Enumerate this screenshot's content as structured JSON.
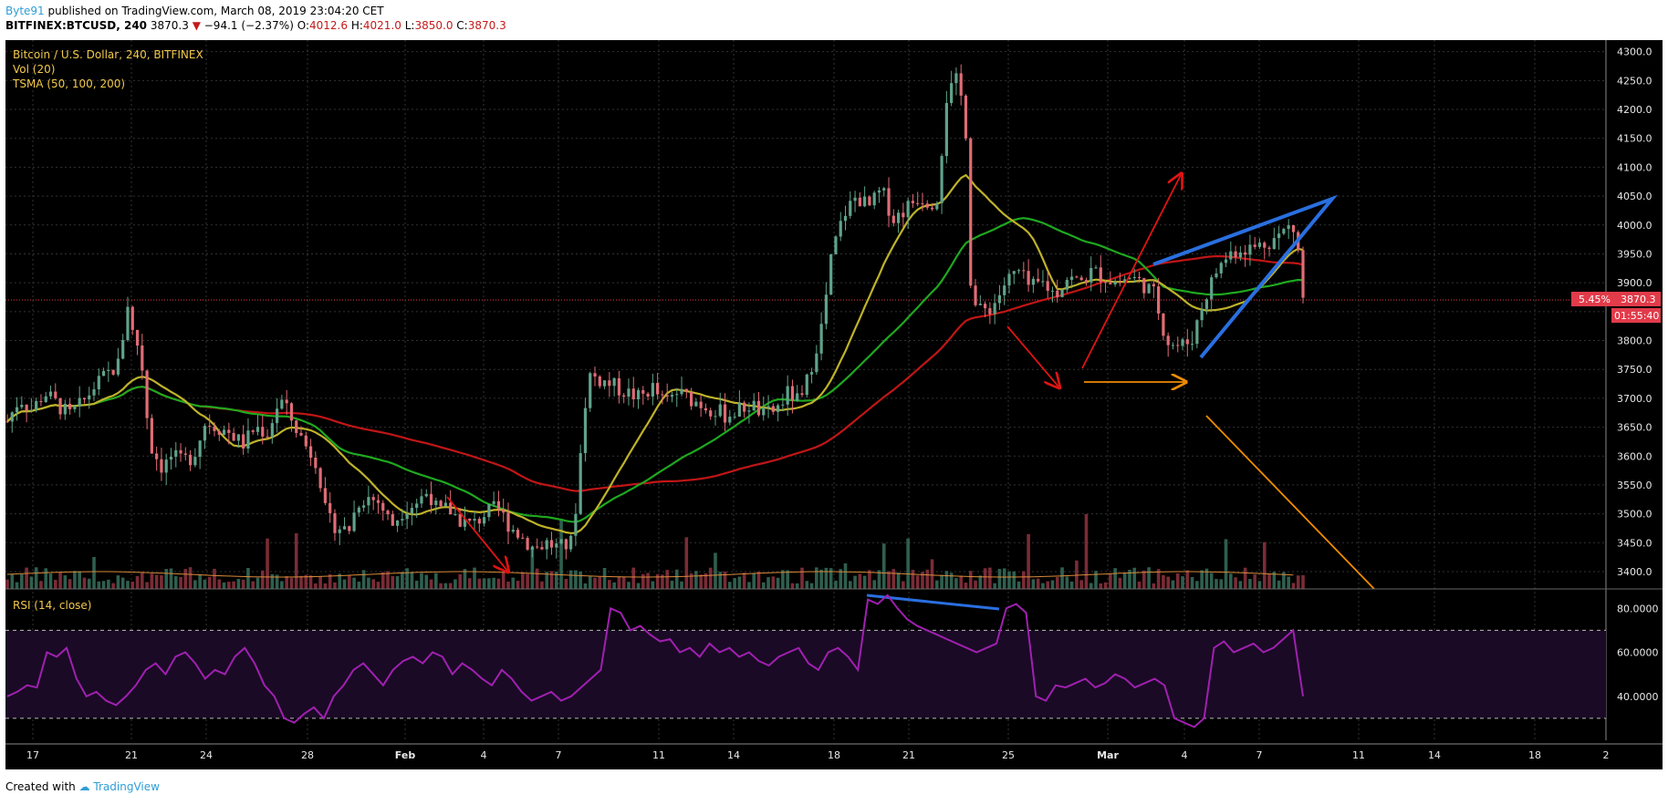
{
  "header": {
    "author": "Byte91",
    "published": " published on TradingView.com, March 08, 2019 23:04:20 CET",
    "symbol": "BITFINEX:BTCUSD, 240",
    "last": "3870.3",
    "change_arrow": "▼",
    "change": "−94.1 (−2.37%)",
    "o_label": "O:",
    "o_value": "4012.6",
    "h_label": "H:",
    "h_value": "4021.0",
    "l_label": "L:",
    "l_value": "3850.0",
    "c_label": "C:",
    "c_value": "3870.3"
  },
  "legend": {
    "title": "Bitcoin / U.S. Dollar, 240, BITFINEX",
    "vol": "Vol (20)",
    "tsma": "TSMA (50, 100, 200)",
    "rsi": "RSI (14, close)"
  },
  "price_badge": {
    "pct": "5.45%",
    "price": "3870.3",
    "countdown": "01:55:40"
  },
  "footer": {
    "created": "Created with",
    "brand": "TradingView"
  },
  "colors": {
    "bg": "#000000",
    "grid": "#333333",
    "up": "#5fa38a",
    "down": "#e06c75",
    "sma50": "#bfb22a",
    "sma100": "#1fa81f",
    "sma200": "#c01616",
    "rsi": "#a020b0",
    "blue": "#2a6fe0",
    "red_arrow": "#e01414",
    "orange": "#f08c00"
  },
  "chart_data": [
    {
      "type": "candlestick",
      "title": "Bitcoin / U.S. Dollar, 240, BITFINEX",
      "x_ticks": [
        "17",
        "21",
        "24",
        "28",
        "Feb",
        "4",
        "7",
        "11",
        "14",
        "18",
        "21",
        "25",
        "Mar",
        "4",
        "7",
        "11",
        "14",
        "18",
        "2"
      ],
      "y_ticks": [
        "4300.0",
        "4250.0",
        "4200.0",
        "4150.0",
        "4100.0",
        "4050.0",
        "4000.0",
        "3950.0",
        "3900.0",
        "3850.0",
        "3800.0",
        "3750.0",
        "3700.0",
        "3650.0",
        "3600.0",
        "3550.0",
        "3500.0",
        "3450.0",
        "3400.0"
      ],
      "ylim": [
        3370,
        4320
      ],
      "last_price": 3870.3,
      "price_path": [
        [
          0,
          3660
        ],
        [
          0.4,
          3700
        ],
        [
          0.8,
          3680
        ],
        [
          1.2,
          3710
        ],
        [
          1.6,
          3690
        ],
        [
          2,
          3670
        ],
        [
          2.4,
          3690
        ],
        [
          2.8,
          3720
        ],
        [
          3.2,
          3740
        ],
        [
          3.6,
          3760
        ],
        [
          3.9,
          3870
        ],
        [
          4.0,
          3820
        ],
        [
          4.3,
          3780
        ],
        [
          4.6,
          3620
        ],
        [
          5.0,
          3580
        ],
        [
          5.3,
          3600
        ],
        [
          5.6,
          3590
        ],
        [
          6.0,
          3600
        ],
        [
          6.4,
          3660
        ],
        [
          6.8,
          3650
        ],
        [
          7.2,
          3640
        ],
        [
          7.6,
          3620
        ],
        [
          8.0,
          3650
        ],
        [
          8.4,
          3640
        ],
        [
          8.8,
          3700
        ],
        [
          9.2,
          3660
        ],
        [
          9.6,
          3620
        ],
        [
          10.0,
          3590
        ],
        [
          10.3,
          3490
        ],
        [
          10.6,
          3480
        ],
        [
          11.0,
          3470
        ],
        [
          11.3,
          3520
        ],
        [
          11.6,
          3530
        ],
        [
          12.0,
          3520
        ],
        [
          12.4,
          3480
        ],
        [
          12.8,
          3510
        ],
        [
          13.2,
          3520
        ],
        [
          13.6,
          3540
        ],
        [
          13.9,
          3500
        ],
        [
          14.2,
          3510
        ],
        [
          14.6,
          3490
        ],
        [
          15.0,
          3480
        ],
        [
          15.4,
          3500
        ],
        [
          15.8,
          3510
        ],
        [
          16.2,
          3480
        ],
        [
          16.6,
          3460
        ],
        [
          17.0,
          3440
        ],
        [
          17.4,
          3450
        ],
        [
          17.8,
          3440
        ],
        [
          18.2,
          3450
        ],
        [
          18.4,
          3540
        ],
        [
          18.6,
          3680
        ],
        [
          18.8,
          3740
        ],
        [
          19.2,
          3730
        ],
        [
          19.6,
          3720
        ],
        [
          20.0,
          3710
        ],
        [
          20.4,
          3700
        ],
        [
          20.8,
          3720
        ],
        [
          21.2,
          3690
        ],
        [
          21.6,
          3710
        ],
        [
          22.0,
          3700
        ],
        [
          22.4,
          3690
        ],
        [
          22.8,
          3680
        ],
        [
          23.2,
          3670
        ],
        [
          23.6,
          3680
        ],
        [
          24.0,
          3690
        ],
        [
          24.4,
          3670
        ],
        [
          24.8,
          3680
        ],
        [
          25.2,
          3710
        ],
        [
          25.6,
          3690
        ],
        [
          26.0,
          3770
        ],
        [
          26.3,
          3830
        ],
        [
          26.6,
          3950
        ],
        [
          27.0,
          4020
        ],
        [
          27.4,
          4050
        ],
        [
          27.8,
          4030
        ],
        [
          28.2,
          4060
        ],
        [
          28.6,
          4010
        ],
        [
          29.0,
          4030
        ],
        [
          29.4,
          4050
        ],
        [
          29.8,
          4040
        ],
        [
          30.0,
          4050
        ],
        [
          30.3,
          4220
        ],
        [
          30.6,
          4250
        ],
        [
          30.9,
          4200
        ],
        [
          31.1,
          3870
        ],
        [
          31.4,
          3850
        ],
        [
          31.8,
          3860
        ],
        [
          32.2,
          3900
        ],
        [
          32.6,
          3920
        ],
        [
          33.0,
          3890
        ],
        [
          33.4,
          3900
        ],
        [
          33.8,
          3880
        ],
        [
          34.2,
          3910
        ],
        [
          34.6,
          3900
        ],
        [
          35.0,
          3920
        ],
        [
          35.4,
          3910
        ],
        [
          35.8,
          3900
        ],
        [
          36.2,
          3910
        ],
        [
          36.6,
          3900
        ],
        [
          37.0,
          3880
        ],
        [
          37.4,
          3800
        ],
        [
          37.8,
          3790
        ],
        [
          38.2,
          3800
        ],
        [
          38.6,
          3870
        ],
        [
          39.0,
          3920
        ],
        [
          39.4,
          3950
        ],
        [
          39.8,
          3960
        ],
        [
          40.2,
          3960
        ],
        [
          40.6,
          3970
        ],
        [
          41.0,
          3980
        ],
        [
          41.4,
          4000
        ],
        [
          41.6,
          3980
        ],
        [
          41.8,
          3870
        ]
      ],
      "volume_overlay": true
    },
    {
      "type": "line",
      "title": "RSI (14, close)",
      "y_ticks": [
        "80.0000",
        "60.0000",
        "40.0000"
      ],
      "ylim": [
        20,
        88
      ],
      "bands": [
        30,
        70
      ],
      "values": [
        40,
        42,
        45,
        44,
        60,
        58,
        62,
        48,
        40,
        42,
        38,
        36,
        40,
        45,
        52,
        55,
        50,
        58,
        60,
        55,
        48,
        52,
        50,
        58,
        62,
        55,
        45,
        40,
        30,
        28,
        32,
        35,
        30,
        40,
        45,
        52,
        55,
        50,
        45,
        52,
        56,
        58,
        55,
        60,
        58,
        50,
        55,
        52,
        48,
        45,
        52,
        48,
        42,
        38,
        40,
        42,
        38,
        40,
        44,
        48,
        52,
        80,
        78,
        70,
        72,
        68,
        65,
        66,
        60,
        62,
        58,
        64,
        60,
        62,
        58,
        60,
        56,
        54,
        58,
        60,
        62,
        55,
        52,
        60,
        62,
        58,
        52,
        84,
        82,
        86,
        80,
        75,
        72,
        70,
        68,
        66,
        64,
        62,
        60,
        62,
        64,
        80,
        82,
        78,
        40,
        38,
        45,
        44,
        46,
        48,
        44,
        46,
        50,
        48,
        44,
        46,
        48,
        45,
        30,
        28,
        26,
        30,
        62,
        65,
        60,
        62,
        64,
        60,
        62,
        66,
        70,
        40
      ]
    }
  ]
}
